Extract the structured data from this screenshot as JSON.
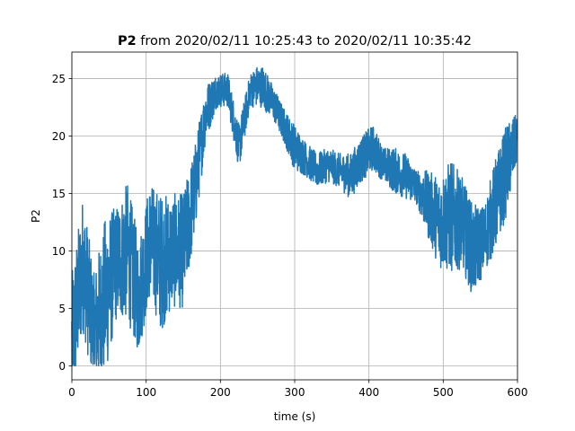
{
  "chart_data": {
    "type": "line",
    "title_bold": "P2",
    "title_rest": " from 2020/02/11 10:25:43 to 2020/02/11 10:35:42",
    "xlabel": "time (s)",
    "ylabel": "P2",
    "xlim": [
      0,
      600
    ],
    "ylim": [
      -1.2,
      27.3
    ],
    "xticks": [
      0,
      100,
      200,
      300,
      400,
      500,
      600
    ],
    "yticks": [
      0,
      5,
      10,
      15,
      20,
      25
    ],
    "grid": true,
    "series": [
      {
        "color": "#1f77b4",
        "noise_amp": [
          6,
          6,
          5,
          7,
          5,
          6,
          5,
          5,
          6,
          5,
          5,
          4,
          2.5,
          1.5,
          1.5,
          2,
          1.5,
          2,
          1.5,
          1.5,
          2,
          1.5,
          1.5,
          1.5,
          1.5,
          2,
          2,
          2,
          1.5,
          2,
          2,
          1.5,
          3,
          4,
          5,
          4,
          4,
          3,
          4,
          4,
          2
        ],
        "x": [
          0,
          15,
          30,
          45,
          60,
          75,
          90,
          105,
          120,
          135,
          150,
          165,
          180,
          195,
          210,
          225,
          240,
          255,
          270,
          285,
          300,
          315,
          330,
          345,
          360,
          375,
          390,
          405,
          420,
          435,
          450,
          465,
          480,
          495,
          510,
          525,
          540,
          555,
          570,
          585,
          600
        ],
        "y": [
          2,
          9,
          3,
          6,
          9,
          10,
          6,
          11,
          9,
          10,
          10,
          15,
          22,
          24,
          24,
          19,
          24,
          24.5,
          23,
          21,
          19,
          18,
          17,
          17.5,
          17,
          16.5,
          18,
          19,
          17.5,
          17,
          16.5,
          15.5,
          14,
          12.5,
          13,
          12.5,
          10,
          11,
          14,
          17,
          20
        ]
      }
    ]
  }
}
